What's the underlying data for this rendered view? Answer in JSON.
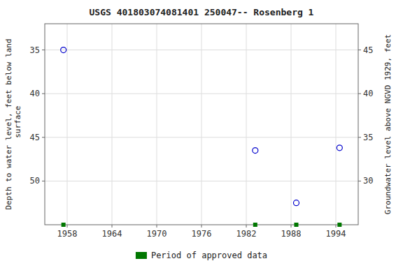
{
  "chart_data": {
    "type": "scatter",
    "title": "USGS 401803074081401 250047-- Rosenberg 1",
    "y_label": "Depth to water level, feet below land\n surface",
    "y2_label": "Groundwater level above NGVD 1929, feet",
    "x": [
      1957.5,
      1983.2,
      1988.7,
      1994.5
    ],
    "series": [
      {
        "color": "#0000cc",
        "marker": "circle",
        "values": [
          35.0,
          46.5,
          52.5,
          46.2
        ]
      },
      {
        "name": "Period of approved data",
        "color": "#007700",
        "marker": "square",
        "values": [
          55.0,
          55.0,
          55.0,
          55.0
        ]
      }
    ],
    "xlim": [
      1955.0,
      1997.0
    ],
    "ylim": [
      55.0,
      32.0
    ],
    "y2lim": [
      25.0,
      48.0
    ],
    "xticks": [
      1958,
      1964,
      1970,
      1976,
      1982,
      1988,
      1994
    ],
    "yticks": [
      35,
      40,
      45,
      50
    ],
    "y2ticks": [
      45,
      40,
      35,
      30
    ],
    "grid": true,
    "legend": "bottom"
  }
}
